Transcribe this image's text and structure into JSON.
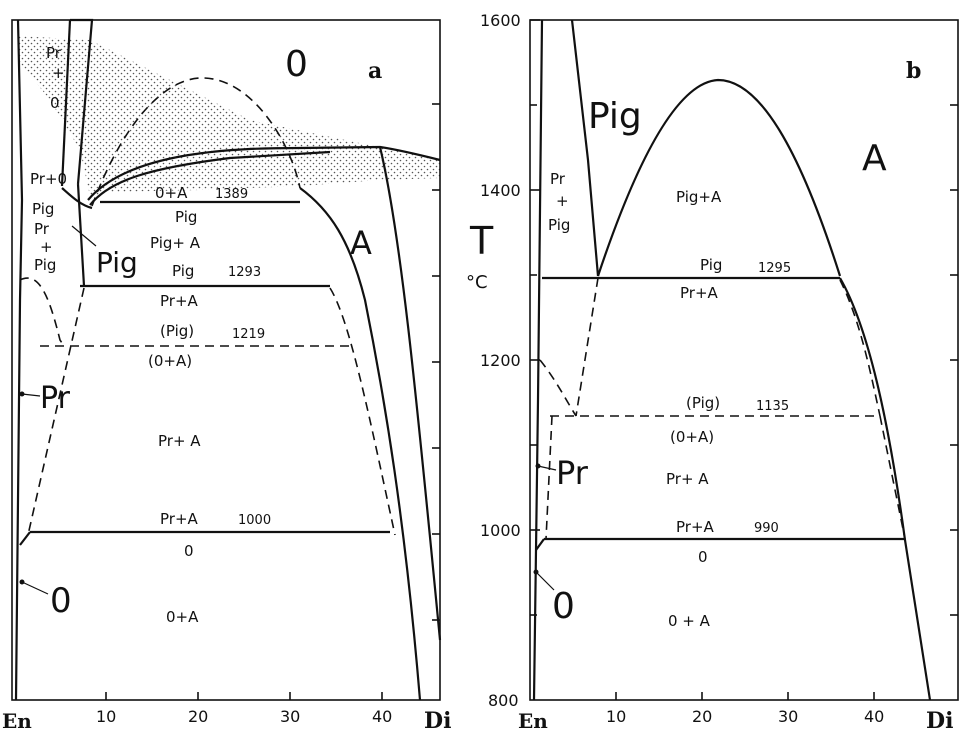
{
  "panel_a": {
    "letter": "a",
    "x_ticks": [
      "10",
      "20",
      "30",
      "40"
    ],
    "x_end_left": "En",
    "x_end_right": "Di",
    "big": {
      "O": "0",
      "A": "A",
      "Pig": "Pig",
      "Pr": "Pr",
      "O_low": "0"
    },
    "fields": {
      "pr_plus_o": [
        "Pr",
        "+",
        "0"
      ],
      "pr_o_small": "Pr+0",
      "pig_pr_pig": [
        "Pig",
        "Pr",
        "+",
        "Pig"
      ],
      "o_plus_a": "0+A",
      "t1389": "1389",
      "pig_over": "Pig",
      "pig_plus_a": "Pig+ A",
      "pig_under": "Pig",
      "t1293": "1293",
      "pr_plus_a_upper": "Pr+A",
      "pig_paren": "(Pig)",
      "t1219": "1219",
      "o_a_paren": "(0+A)",
      "pr_plus_a_mid": "Pr+ A",
      "pr_plus_a_low": "Pr+A",
      "t1000": "1000",
      "o_under": "0",
      "o_plus_a_low": "0+A"
    }
  },
  "panel_b": {
    "letter": "b",
    "y_ticks": [
      "1600",
      "1400",
      "1200",
      "1000",
      "800"
    ],
    "y_label": "T",
    "y_unit": "°C",
    "x_ticks": [
      "10",
      "20",
      "30",
      "40"
    ],
    "x_end_left": "En",
    "x_end_right": "Di",
    "big": {
      "Pig": "Pig",
      "A": "A",
      "Pr": "Pr",
      "O": "0"
    },
    "fields": {
      "pr_plus_pig": [
        "Pr",
        "+",
        "Pig"
      ],
      "pig_plus_a": "Pig+A",
      "pig_over": "Pig",
      "t1295": "1295",
      "pr_plus_a_upper": "Pr+A",
      "pig_paren": "(Pig)",
      "t1135": "1135",
      "o_a_paren": "(0+A)",
      "pr_plus_a_mid": "Pr+ A",
      "pr_plus_a_low": "Pr+A",
      "t990": "990",
      "o_under": "0",
      "o_plus_a_low": "0 + A"
    }
  }
}
